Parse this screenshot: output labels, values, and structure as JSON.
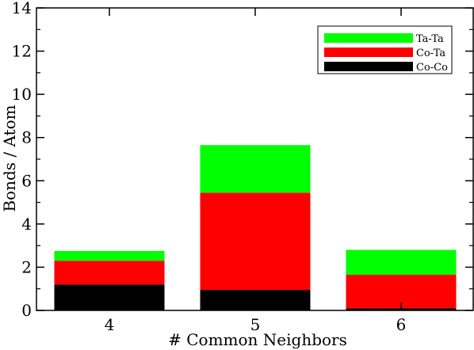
{
  "chart_data": {
    "type": "bar",
    "stacked": true,
    "categories": [
      "4",
      "5",
      "6"
    ],
    "series": [
      {
        "name": "Co-Co",
        "color": "#000000",
        "values": [
          1.2,
          0.95,
          0.1
        ]
      },
      {
        "name": "Co-Ta",
        "color": "#ff0000",
        "values": [
          1.1,
          4.5,
          1.55
        ]
      },
      {
        "name": "Ta-Ta",
        "color": "#00ff00",
        "values": [
          0.45,
          2.2,
          1.15
        ]
      }
    ],
    "xlabel": "# Common Neighbors",
    "ylabel": "Bonds / Atom",
    "ylim": [
      0,
      14
    ],
    "yticks": [
      "0",
      "2",
      "4",
      "6",
      "8",
      "10",
      "12",
      "14"
    ],
    "grid": false,
    "legend": {
      "position": "top-right",
      "order": [
        "Ta-Ta",
        "Co-Ta",
        "Co-Co"
      ]
    }
  }
}
